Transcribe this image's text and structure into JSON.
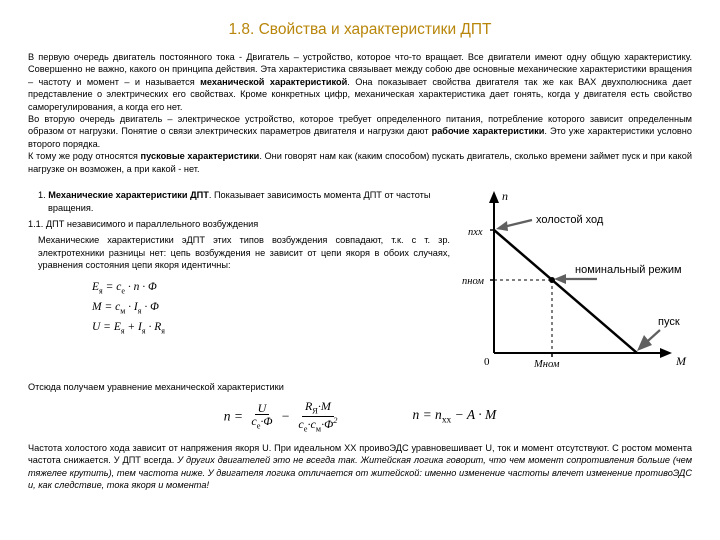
{
  "title": "1.8. Свойства и характеристики ДПТ",
  "intro_p1a": "В первую очередь двигатель постоянного тока - Двигатель – устройство, которое что-то вращает. Все двигатели имеют одну общую характеристику. Совершенно не важно, какого он принципа действия. Эта характеристика связывает между собою две основные механические характеристики вращения – частоту и момент – и называется ",
  "intro_p1b": "механической характеристикой",
  "intro_p1c": ". Она показывает свойства двигателя так же как ВАХ двухполюсника дает представление о электрических его свойствах. Кроме конкретных цифр, механическая характеристика дает гонять, когда у двигателя есть свойство саморегулирования, а когда его нет.",
  "intro_p2a": "Во вторую очередь двигатель – электрическое устройство, которое требует определенного питания, потребление которого зависит определенным образом от нагрузки. Понятие о связи электрических параметров двигателя и нагрузки дают ",
  "intro_p2b": "рабочие характеристики",
  "intro_p2c": ". Это уже характеристики условно второго порядка.",
  "intro_p3a": "К тому же роду относятся ",
  "intro_p3b": "пусковые характеристики",
  "intro_p3c": ". Они говорят нам как (каким способом) пускать двигатель, сколько времени займет пуск и при какой нагрузке он возможен, а при какой - нет.",
  "sec1a": "1. ",
  "sec1b": "Механические характеристики ДПТ",
  "sec1c": ". Показывает зависимость момента ДПТ от частоты вращения.",
  "sec11": "1.1. ДПТ независимого и параллельного возбуждения",
  "mechtext": "Механические характеристики эДПТ этих типов возбуждения совпадают, т.к. с т. зр. электротехники разницы нет: цепь возбуждения не зависит от цепи якоря в обоих случаях, уравнения состояния цепи якоря идентичны:",
  "f1": "E<sub>я</sub> = c<sub>e</sub> · n · Φ",
  "f2": "M = c<sub>м</sub> · I<sub>я</sub> · Φ",
  "f3": "U = E<sub>я</sub> + I<sub>я</sub> · R<sub>я</sub>",
  "after": "Отсюда получаем уравнение механической характеристики",
  "eq2": "n = n<sub>xx</sub> − A · M",
  "closing_a": "Частота холостого хода зависит от напряжения якоря U. При идеальном XX проивоЭДС уравновешивает U, ток и момент отсутствуют. С ростом момента частота снижается. У ДПТ всегда. ",
  "closing_b": "У других двигателей это не всегда так. Житейская логика говорит, что чем момент сопротивления больше (чем тяжелее крутить), тем частота ниже. У двигателя логика отличается от житейской: именно изменение частоты влечет изменение противоЭДС и, как следствие, тока якоря и момента!",
  "chart": {
    "bg": "#ffffff",
    "axis_color": "#000000",
    "line_color": "#000000",
    "line_width": 2.5,
    "arrow_color": "#606060",
    "n_label": "n",
    "M_label": "M",
    "nxx_label": "nxx",
    "nnom_label": "nном",
    "Mnom_label": "Mном",
    "zero_label": "0",
    "ann_idle": "холостой ход",
    "ann_nominal": "номинальный режим",
    "ann_start": "пуск"
  }
}
